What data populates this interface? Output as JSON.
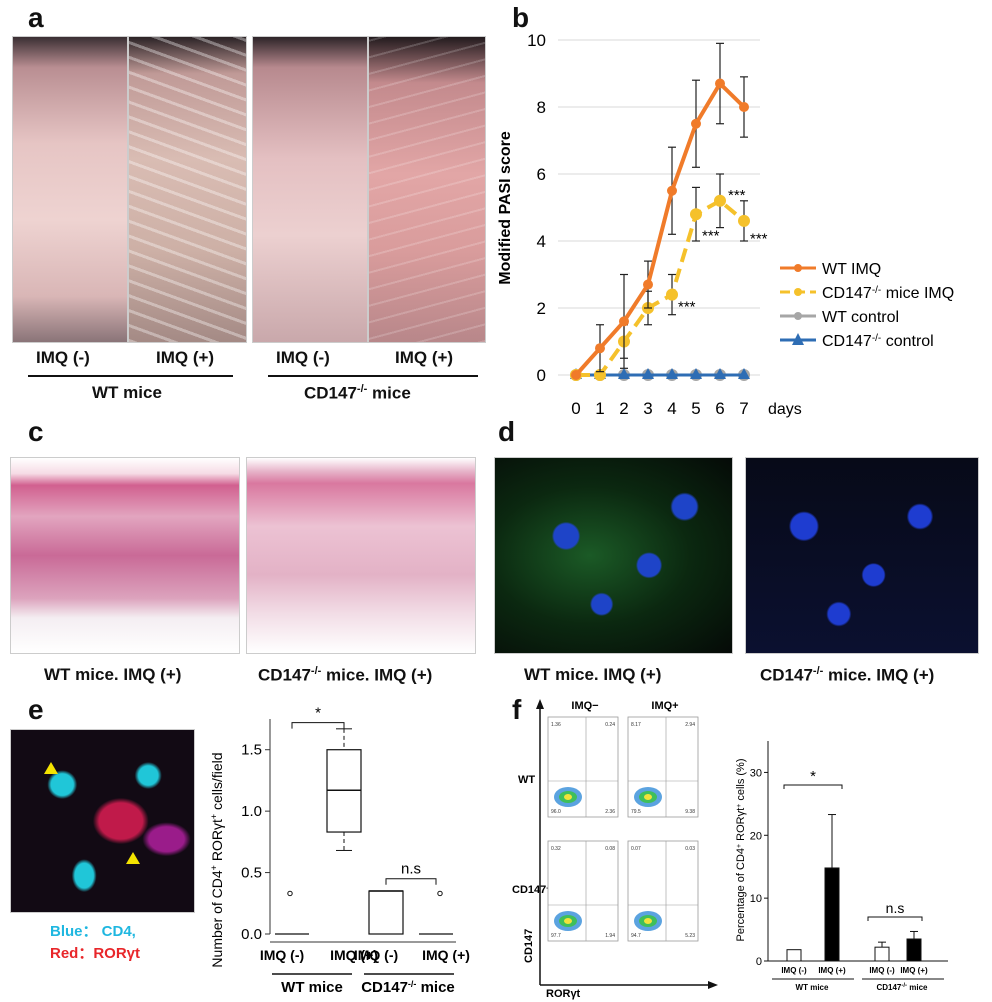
{
  "panels": {
    "a": {
      "letter": "a",
      "labels": [
        "IMQ (-)",
        "IMQ (+)",
        "IMQ (-)",
        "IMQ (+)"
      ],
      "group1": "WT mice",
      "group2_pre": "CD147",
      "group2_sup": "-/-",
      "group2_post": " mice"
    },
    "b": {
      "letter": "b"
    },
    "c": {
      "letter": "c",
      "cap1": "WT mice. IMQ (+)",
      "cap2_pre": "CD147",
      "cap2_sup": "-/-",
      "cap2_post": " mice. IMQ (+)"
    },
    "d": {
      "letter": "d",
      "cap1": "WT mice. IMQ (+)",
      "cap2_pre": "CD147",
      "cap2_sup": "-/-",
      "cap2_post": " mice. IMQ (+)"
    },
    "e": {
      "letter": "e",
      "legend_blue": "Blue： CD4,",
      "legend_red": "Red：RORγt",
      "blue_color": "#1fb7e0",
      "red_color": "#e8262a"
    },
    "f": {
      "letter": "f",
      "col1": "IMQ−",
      "col2": "IMQ+",
      "row1": "WT",
      "row2": "CD147",
      "row2_sup": "-/-",
      "yaxis": "CD147",
      "xaxis": "RORγt",
      "quadrants": [
        [
          "1.36",
          "0.24",
          "96.0",
          "2.36"
        ],
        [
          "8.17",
          "2.94",
          "79.5",
          "9.38"
        ],
        [
          "0.32",
          "0.08",
          "97.7",
          "1.94"
        ],
        [
          "0.07",
          "0.03",
          "94.7",
          "5.23"
        ]
      ]
    }
  },
  "chart_data": [
    {
      "type": "line",
      "ylabel": "Modified PASI score",
      "xunit": "days",
      "x": [
        0,
        1,
        2,
        3,
        4,
        5,
        6,
        7
      ],
      "ylim": [
        0,
        10
      ],
      "yticks": [
        0,
        2,
        4,
        6,
        8,
        10
      ],
      "grid": true,
      "legend_position": "right",
      "series": [
        {
          "name": "WT IMQ",
          "color": "#f07b2a",
          "values": [
            0,
            0.8,
            1.6,
            2.7,
            5.5,
            7.5,
            8.7,
            8.0
          ],
          "err": [
            0,
            0.7,
            1.4,
            0.7,
            1.3,
            1.3,
            1.2,
            0.9
          ]
        },
        {
          "name_pre": "CD147",
          "name_sup": "-/-",
          "name_post": " mice IMQ",
          "color": "#f5c12b",
          "values": [
            0,
            0,
            1.0,
            2.0,
            2.4,
            4.8,
            5.2,
            4.6
          ],
          "err": [
            0,
            0,
            0.5,
            0.5,
            0.6,
            0.8,
            0.8,
            0.6
          ]
        },
        {
          "name": "WT control",
          "color": "#a6a6a6",
          "values": [
            0,
            0,
            0,
            0,
            0,
            0,
            0,
            0
          ]
        },
        {
          "name_pre": "CD147",
          "name_sup": "-/-",
          "name_post": " control",
          "color": "#2e6db4",
          "values": [
            0,
            0,
            0,
            0,
            0,
            0,
            0,
            0
          ]
        }
      ],
      "annotations": [
        {
          "x": 4,
          "y": 2.2,
          "text": "***"
        },
        {
          "x": 5,
          "y": 4.2,
          "text": "***"
        },
        {
          "x": 6,
          "y": 5.1,
          "text": "***"
        },
        {
          "x": 7,
          "y": 4.1,
          "text": "***"
        }
      ]
    },
    {
      "type": "box",
      "ylabel_pre": "Number of CD4",
      "ylabel_mid": " RORγt",
      "ylabel_post": " cells/field",
      "ylim": [
        0,
        1.75
      ],
      "yticks": [
        "0.0",
        "0.5",
        "1.0",
        "1.5"
      ],
      "categories": [
        "IMQ (-)",
        "IMQ (+)",
        "IMQ (-)",
        "IMQ (+)"
      ],
      "groups": [
        "WT mice",
        "CD147-/- mice"
      ],
      "boxes": [
        {
          "min": 0,
          "q1": 0,
          "median": 0,
          "q3": 0,
          "max": 0,
          "outliers": [
            0.33
          ]
        },
        {
          "min": 0.68,
          "q1": 0.83,
          "median": 1.17,
          "q3": 1.5,
          "max": 1.67,
          "outliers": []
        },
        {
          "min": 0,
          "q1": 0,
          "median": 0.35,
          "q3": 0.35,
          "max": 0.35,
          "outliers": []
        },
        {
          "min": 0,
          "q1": 0,
          "median": 0,
          "q3": 0,
          "max": 0,
          "outliers": [
            0.33
          ]
        }
      ],
      "sig": [
        "*",
        "n.s"
      ]
    },
    {
      "type": "bar",
      "ylabel_pre": "Percentage of CD4",
      "ylabel_mid": " RORγt",
      "ylabel_post": " cells (%)",
      "ylim": [
        0,
        35
      ],
      "yticks": [
        0,
        10,
        20,
        30
      ],
      "categories": [
        "IMQ (-)",
        "IMQ (+)",
        "IMQ (-)",
        "IMQ (+)"
      ],
      "groups": [
        "WT mice",
        "CD147-/- mice"
      ],
      "values": [
        1.8,
        14.8,
        2.2,
        3.5
      ],
      "err": [
        0,
        8.5,
        0.8,
        1.2
      ],
      "fills": [
        "#ffffff",
        "#000000",
        "#ffffff",
        "#000000"
      ],
      "sig": [
        "*",
        "n.s"
      ]
    }
  ]
}
